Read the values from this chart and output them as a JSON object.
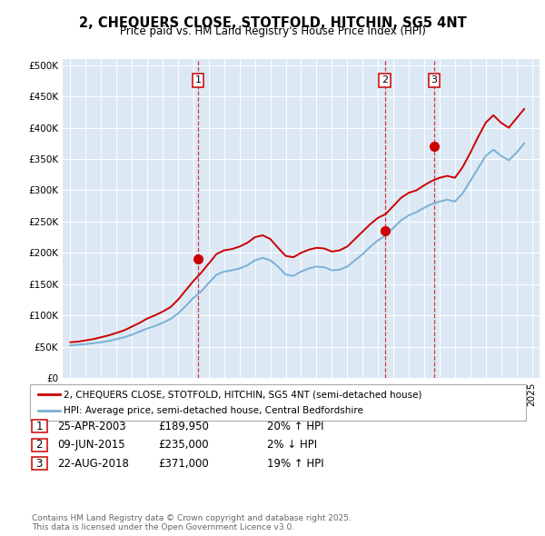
{
  "title": "2, CHEQUERS CLOSE, STOTFOLD, HITCHIN, SG5 4NT",
  "subtitle": "Price paid vs. HM Land Registry's House Price Index (HPI)",
  "hpi_label": "HPI: Average price, semi-detached house, Central Bedfordshire",
  "property_label": "2, CHEQUERS CLOSE, STOTFOLD, HITCHIN, SG5 4NT (semi-detached house)",
  "red_color": "#cc0000",
  "blue_color": "#7ab0d4",
  "bg_color": "#dce9f5",
  "transactions": [
    {
      "num": 1,
      "date": "25-APR-2003",
      "price": 189950,
      "year": 2003.3,
      "change": "20% ↑ HPI"
    },
    {
      "num": 2,
      "date": "09-JUN-2015",
      "price": 235000,
      "year": 2015.45,
      "change": "2% ↓ HPI"
    },
    {
      "num": 3,
      "date": "22-AUG-2018",
      "price": 371000,
      "year": 2018.65,
      "change": "19% ↑ HPI"
    }
  ],
  "footer": "Contains HM Land Registry data © Crown copyright and database right 2025.\nThis data is licensed under the Open Government Licence v3.0.",
  "ylim": [
    0,
    510000
  ],
  "yticks": [
    0,
    50000,
    100000,
    150000,
    200000,
    250000,
    300000,
    350000,
    400000,
    450000,
    500000
  ],
  "hpi_data": {
    "years": [
      1995.0,
      1995.5,
      1996.0,
      1996.5,
      1997.0,
      1997.5,
      1998.0,
      1998.5,
      1999.0,
      1999.5,
      2000.0,
      2000.5,
      2001.0,
      2001.5,
      2002.0,
      2002.5,
      2003.0,
      2003.5,
      2004.0,
      2004.5,
      2005.0,
      2005.5,
      2006.0,
      2006.5,
      2007.0,
      2007.5,
      2008.0,
      2008.5,
      2009.0,
      2009.5,
      2010.0,
      2010.5,
      2011.0,
      2011.5,
      2012.0,
      2012.5,
      2013.0,
      2013.5,
      2014.0,
      2014.5,
      2015.0,
      2015.5,
      2016.0,
      2016.5,
      2017.0,
      2017.5,
      2018.0,
      2018.5,
      2019.0,
      2019.5,
      2020.0,
      2020.5,
      2021.0,
      2021.5,
      2022.0,
      2022.5,
      2023.0,
      2023.5,
      2024.0,
      2024.5
    ],
    "hpi_values": [
      52000,
      53000,
      54000,
      55500,
      57000,
      59000,
      62000,
      65000,
      69000,
      74000,
      79000,
      83000,
      88000,
      94000,
      103000,
      115000,
      128000,
      138000,
      152000,
      165000,
      170000,
      172000,
      175000,
      180000,
      188000,
      192000,
      188000,
      178000,
      165000,
      163000,
      170000,
      175000,
      178000,
      177000,
      172000,
      173000,
      178000,
      188000,
      198000,
      210000,
      220000,
      228000,
      240000,
      252000,
      260000,
      265000,
      272000,
      278000,
      282000,
      285000,
      282000,
      295000,
      315000,
      335000,
      355000,
      365000,
      355000,
      348000,
      360000,
      375000
    ],
    "red_values": [
      57000,
      58000,
      60000,
      62000,
      65000,
      68000,
      72000,
      76000,
      82000,
      88000,
      95000,
      100000,
      106000,
      113000,
      125000,
      140000,
      155000,
      168000,
      183000,
      198000,
      204000,
      206000,
      210000,
      216000,
      225000,
      228000,
      222000,
      208000,
      195000,
      193000,
      200000,
      205000,
      208000,
      207000,
      202000,
      204000,
      210000,
      222000,
      234000,
      246000,
      256000,
      262000,
      275000,
      288000,
      296000,
      300000,
      308000,
      315000,
      320000,
      323000,
      320000,
      337000,
      360000,
      385000,
      408000,
      420000,
      408000,
      400000,
      415000,
      430000
    ]
  }
}
